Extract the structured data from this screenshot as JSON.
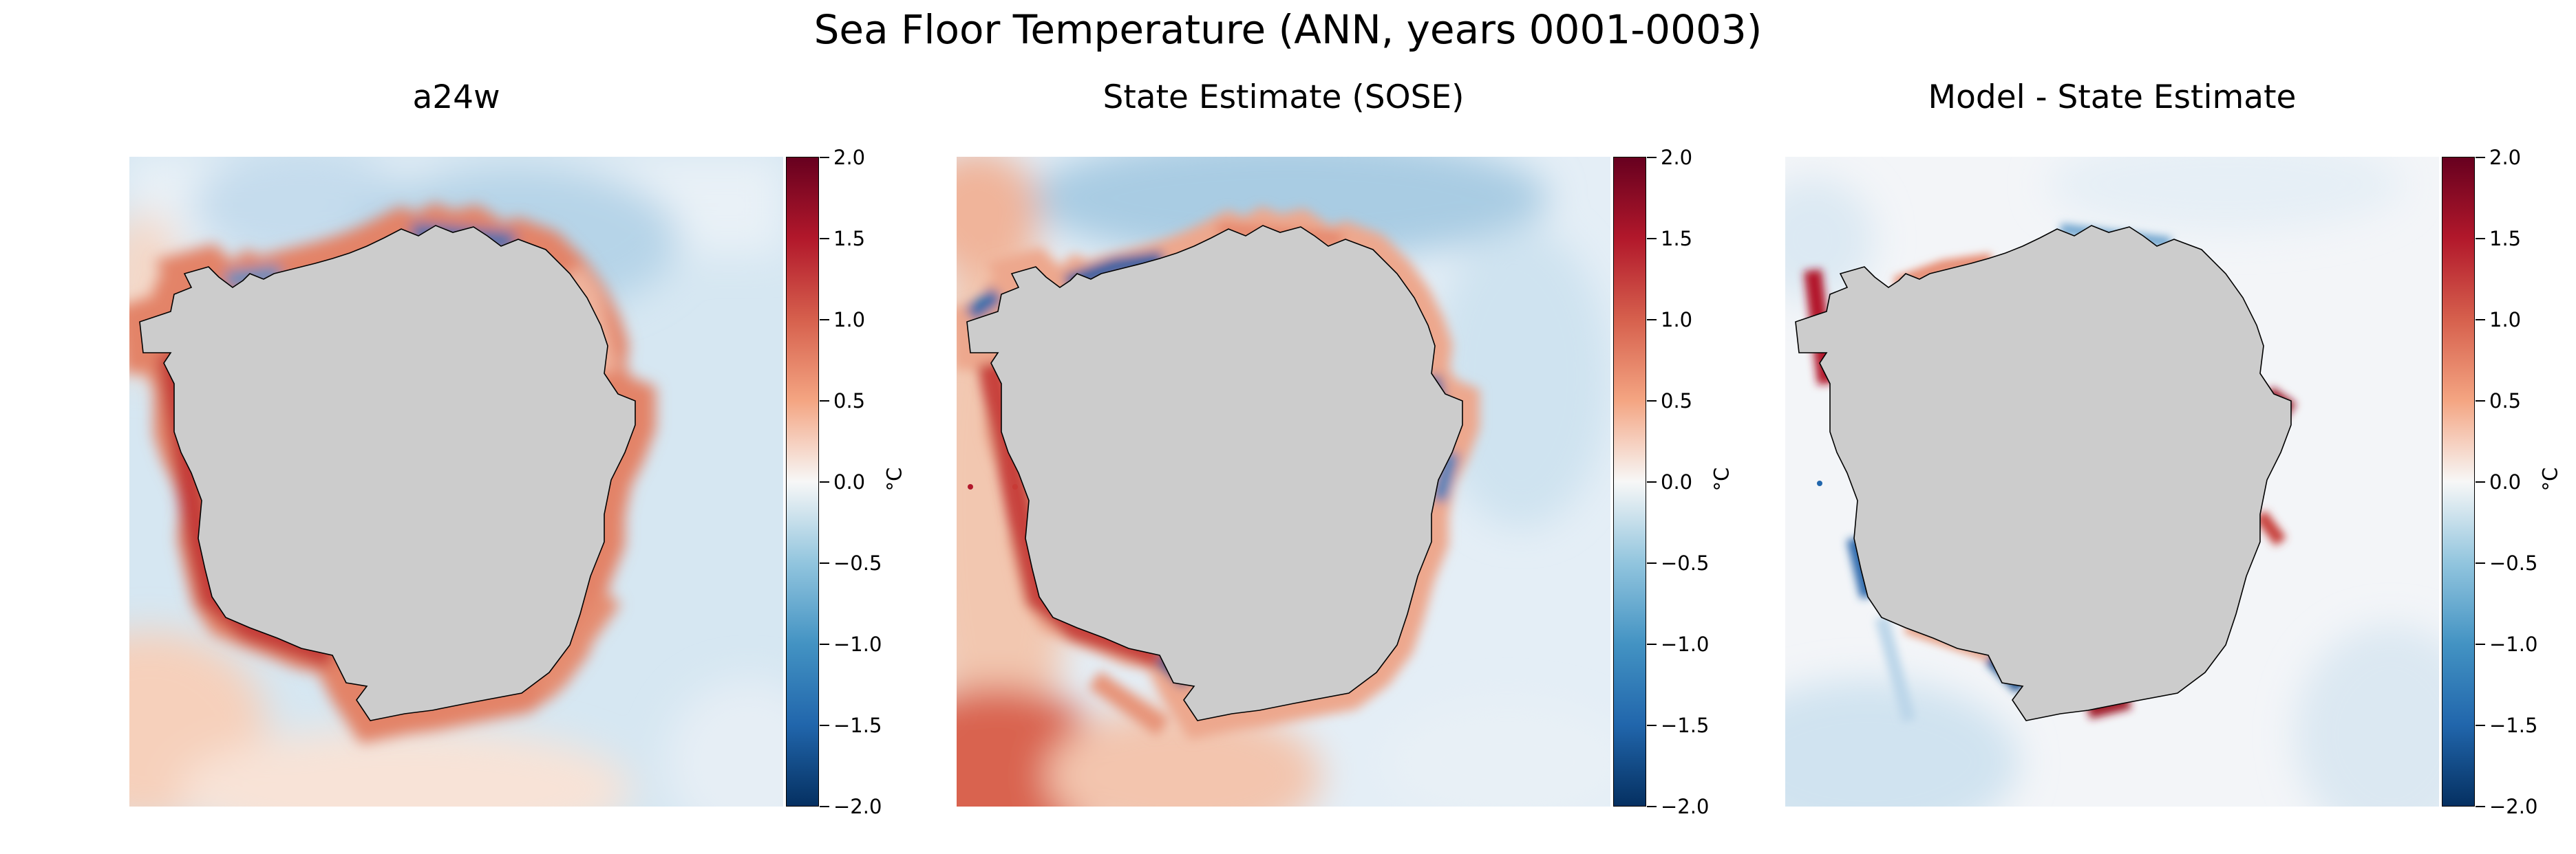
{
  "figure": {
    "suptitle": "Sea Floor Temperature (ANN, years 0001-0003)"
  },
  "colors": {
    "land": "#cccccc",
    "coast": "#000000",
    "cmap": [
      "#053061",
      "#2166ac",
      "#4393c3",
      "#92c5de",
      "#f7f7f7",
      "#f4a582",
      "#d6604d",
      "#b2182b",
      "#67001f"
    ]
  },
  "chart_data": [
    {
      "type": "heatmap",
      "title": "a24w",
      "colormap": "RdBu_r",
      "colorbar": {
        "label": "°C",
        "range": [
          -2.0,
          2.0
        ],
        "ticks": [
          "2.0",
          "1.5",
          "1.0",
          "0.5",
          "0.0",
          "−0.5",
          "−1.0",
          "−1.5",
          "−2.0"
        ]
      },
      "pattern": {
        "open_ocean": "slightly cool blue (~-0.5)",
        "shelf_margin": "warm red (~1.5) along western/southern coast",
        "far_corners": "light warm"
      }
    },
    {
      "type": "heatmap",
      "title": "State Estimate (SOSE)",
      "colormap": "RdBu_r",
      "colorbar": {
        "label": "°C",
        "range": [
          -2.0,
          2.0
        ],
        "ticks": [
          "2.0",
          "1.5",
          "1.0",
          "0.5",
          "0.0",
          "−0.5",
          "−1.0",
          "−1.5",
          "−2.0"
        ]
      },
      "pattern": {
        "open_ocean": "light blue (~-0.7)",
        "shelf_margin": "mixed red (~1.5) and deep blue (~-1.8) patches",
        "bottom_left": "warm red"
      }
    },
    {
      "type": "heatmap",
      "title": "Model - State Estimate",
      "colormap": "RdBu_r",
      "colorbar": {
        "label": "°C",
        "range": [
          -2.0,
          2.0
        ],
        "ticks": [
          "2.0",
          "1.5",
          "1.0",
          "0.5",
          "0.0",
          "−0.5",
          "−1.0",
          "−1.5",
          "−2.0"
        ]
      },
      "pattern": {
        "open_ocean": "near zero, faint blue streaks",
        "shelf_margin": "strong positive/negative anomalies"
      }
    }
  ]
}
